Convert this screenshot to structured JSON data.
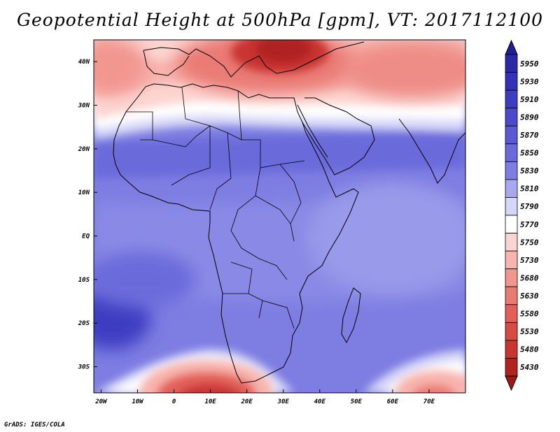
{
  "title": "Geopotential Height at 500hPa [gpm], VT: 2017112100",
  "credit": "GrADS: IGES/COLA",
  "map": {
    "lon_range": [
      -22,
      80
    ],
    "lat_range": [
      -36,
      45
    ],
    "lon_ticks": [
      {
        "lon": -20,
        "label": "20W"
      },
      {
        "lon": -10,
        "label": "10W"
      },
      {
        "lon": 0,
        "label": "0"
      },
      {
        "lon": 10,
        "label": "10E"
      },
      {
        "lon": 20,
        "label": "20E"
      },
      {
        "lon": 30,
        "label": "30E"
      },
      {
        "lon": 40,
        "label": "40E"
      },
      {
        "lon": 50,
        "label": "50E"
      },
      {
        "lon": 60,
        "label": "60E"
      },
      {
        "lon": 70,
        "label": "70E"
      }
    ],
    "lat_ticks": [
      {
        "lat": 40,
        "label": "40N"
      },
      {
        "lat": 30,
        "label": "30N"
      },
      {
        "lat": 20,
        "label": "20N"
      },
      {
        "lat": 10,
        "label": "10N"
      },
      {
        "lat": 0,
        "label": "EQ"
      },
      {
        "lat": -10,
        "label": "10S"
      },
      {
        "lat": -20,
        "label": "20S"
      },
      {
        "lat": -30,
        "label": "30S"
      }
    ],
    "field_regions": [
      {
        "name": "subtropical-band",
        "value": 5830
      },
      {
        "name": "equatorial-belt",
        "value": 5850
      },
      {
        "name": "atlantic-high",
        "value": 5900
      },
      {
        "name": "north-africa-gradient",
        "value": 5770
      },
      {
        "name": "mediterranean-trough",
        "value": 5630
      },
      {
        "name": "eastern-med-low",
        "value": 5430
      },
      {
        "name": "south-atlantic-trough",
        "value": 5480
      },
      {
        "name": "south-indian-trough",
        "value": 5680
      }
    ]
  },
  "colorbar": {
    "levels": [
      {
        "value": "5950",
        "color": "#2a2aa8"
      },
      {
        "value": "5930",
        "color": "#3333b8"
      },
      {
        "value": "5910",
        "color": "#3d3dc2"
      },
      {
        "value": "5890",
        "color": "#4a4acb"
      },
      {
        "value": "5870",
        "color": "#5a5ad3"
      },
      {
        "value": "5850",
        "color": "#6a6adb"
      },
      {
        "value": "5830",
        "color": "#7d7de2"
      },
      {
        "value": "5810",
        "color": "#a8a8ee"
      },
      {
        "value": "5790",
        "color": "#d6d6f8"
      },
      {
        "value": "5770",
        "color": "#ffffff"
      },
      {
        "value": "5750",
        "color": "#fcd4d0"
      },
      {
        "value": "5730",
        "color": "#f8b4ae"
      },
      {
        "value": "5680",
        "color": "#f29690"
      },
      {
        "value": "5630",
        "color": "#ea7a74"
      },
      {
        "value": "5580",
        "color": "#e2605a"
      },
      {
        "value": "5530",
        "color": "#d84a44"
      },
      {
        "value": "5480",
        "color": "#c83632"
      },
      {
        "value": "5430",
        "color": "#b02420"
      }
    ],
    "top_cap_color": "#1e1e96",
    "bottom_cap_color": "#9e1a18"
  }
}
